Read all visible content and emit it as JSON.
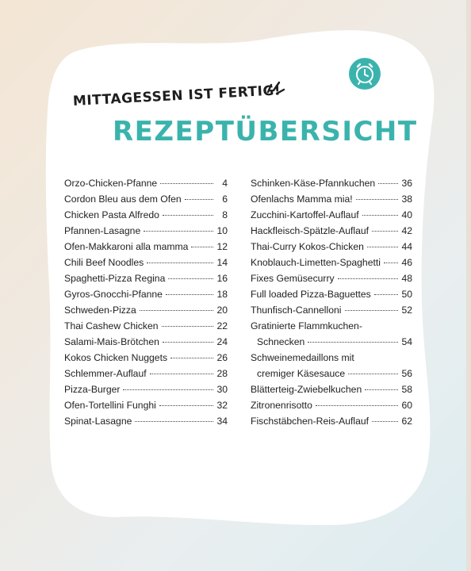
{
  "header": {
    "subtitle": "MITTAGESSEN IST FERTIG!",
    "title": "REZEPTÜBERSICHT"
  },
  "icons": {
    "alarm": "alarm-clock-icon",
    "exclamation": "exclamation-marks-icon"
  },
  "colors": {
    "accent": "#3bb3ad",
    "text": "#222222",
    "card": "#ffffff"
  },
  "toc_left": [
    {
      "name": "Orzo-Chicken-Pfanne",
      "page": "4"
    },
    {
      "name": "Cordon Bleu aus dem Ofen",
      "page": "6"
    },
    {
      "name": "Chicken Pasta Alfredo",
      "page": "8"
    },
    {
      "name": "Pfannen-Lasagne",
      "page": "10"
    },
    {
      "name": "Ofen-Makkaroni alla mamma",
      "page": "12"
    },
    {
      "name": "Chili Beef Noodles",
      "page": "14"
    },
    {
      "name": "Spaghetti-Pizza Regina",
      "page": "16"
    },
    {
      "name": "Gyros-Gnocchi-Pfanne",
      "page": "18"
    },
    {
      "name": "Schweden-Pizza",
      "page": "20"
    },
    {
      "name": "Thai Cashew Chicken",
      "page": "22"
    },
    {
      "name": "Salami-Mais-Brötchen",
      "page": "24"
    },
    {
      "name": "Kokos Chicken Nuggets",
      "page": "26"
    },
    {
      "name": "Schlemmer-Auflauf",
      "page": "28"
    },
    {
      "name": "Pizza-Burger",
      "page": "30"
    },
    {
      "name": "Ofen-Tortellini Funghi",
      "page": "32"
    },
    {
      "name": "Spinat-Lasagne",
      "page": "34"
    }
  ],
  "toc_right": [
    {
      "name": "Schinken-Käse-Pfannkuchen",
      "page": "36"
    },
    {
      "name": "Ofenlachs Mamma mia!",
      "page": "38"
    },
    {
      "name": "Zucchini-Kartoffel-Auflauf",
      "page": "40"
    },
    {
      "name": "Hackfleisch-Spätzle-Auflauf",
      "page": "42"
    },
    {
      "name": "Thai-Curry Kokos-Chicken",
      "page": "44"
    },
    {
      "name": "Knoblauch-Limetten-Spaghetti",
      "page": "46"
    },
    {
      "name": "Fixes Gemüsecurry",
      "page": "48"
    },
    {
      "name": "Full loaded Pizza-Baguettes",
      "page": "50"
    },
    {
      "name": "Thunfisch-Cannelloni",
      "page": "52"
    },
    {
      "name": "Gratinierte Flammkuchen-",
      "page": ""
    },
    {
      "name": "Schnecken",
      "page": "54"
    },
    {
      "name": "Schweinemedaillons mit",
      "page": ""
    },
    {
      "name": "cremiger Käsesauce",
      "page": "56"
    },
    {
      "name": "Blätterteig-Zwiebelkuchen",
      "page": "58"
    },
    {
      "name": "Zitronenrisotto",
      "page": "60"
    },
    {
      "name": "Fischstäbchen-Reis-Auflauf",
      "page": "62"
    }
  ]
}
